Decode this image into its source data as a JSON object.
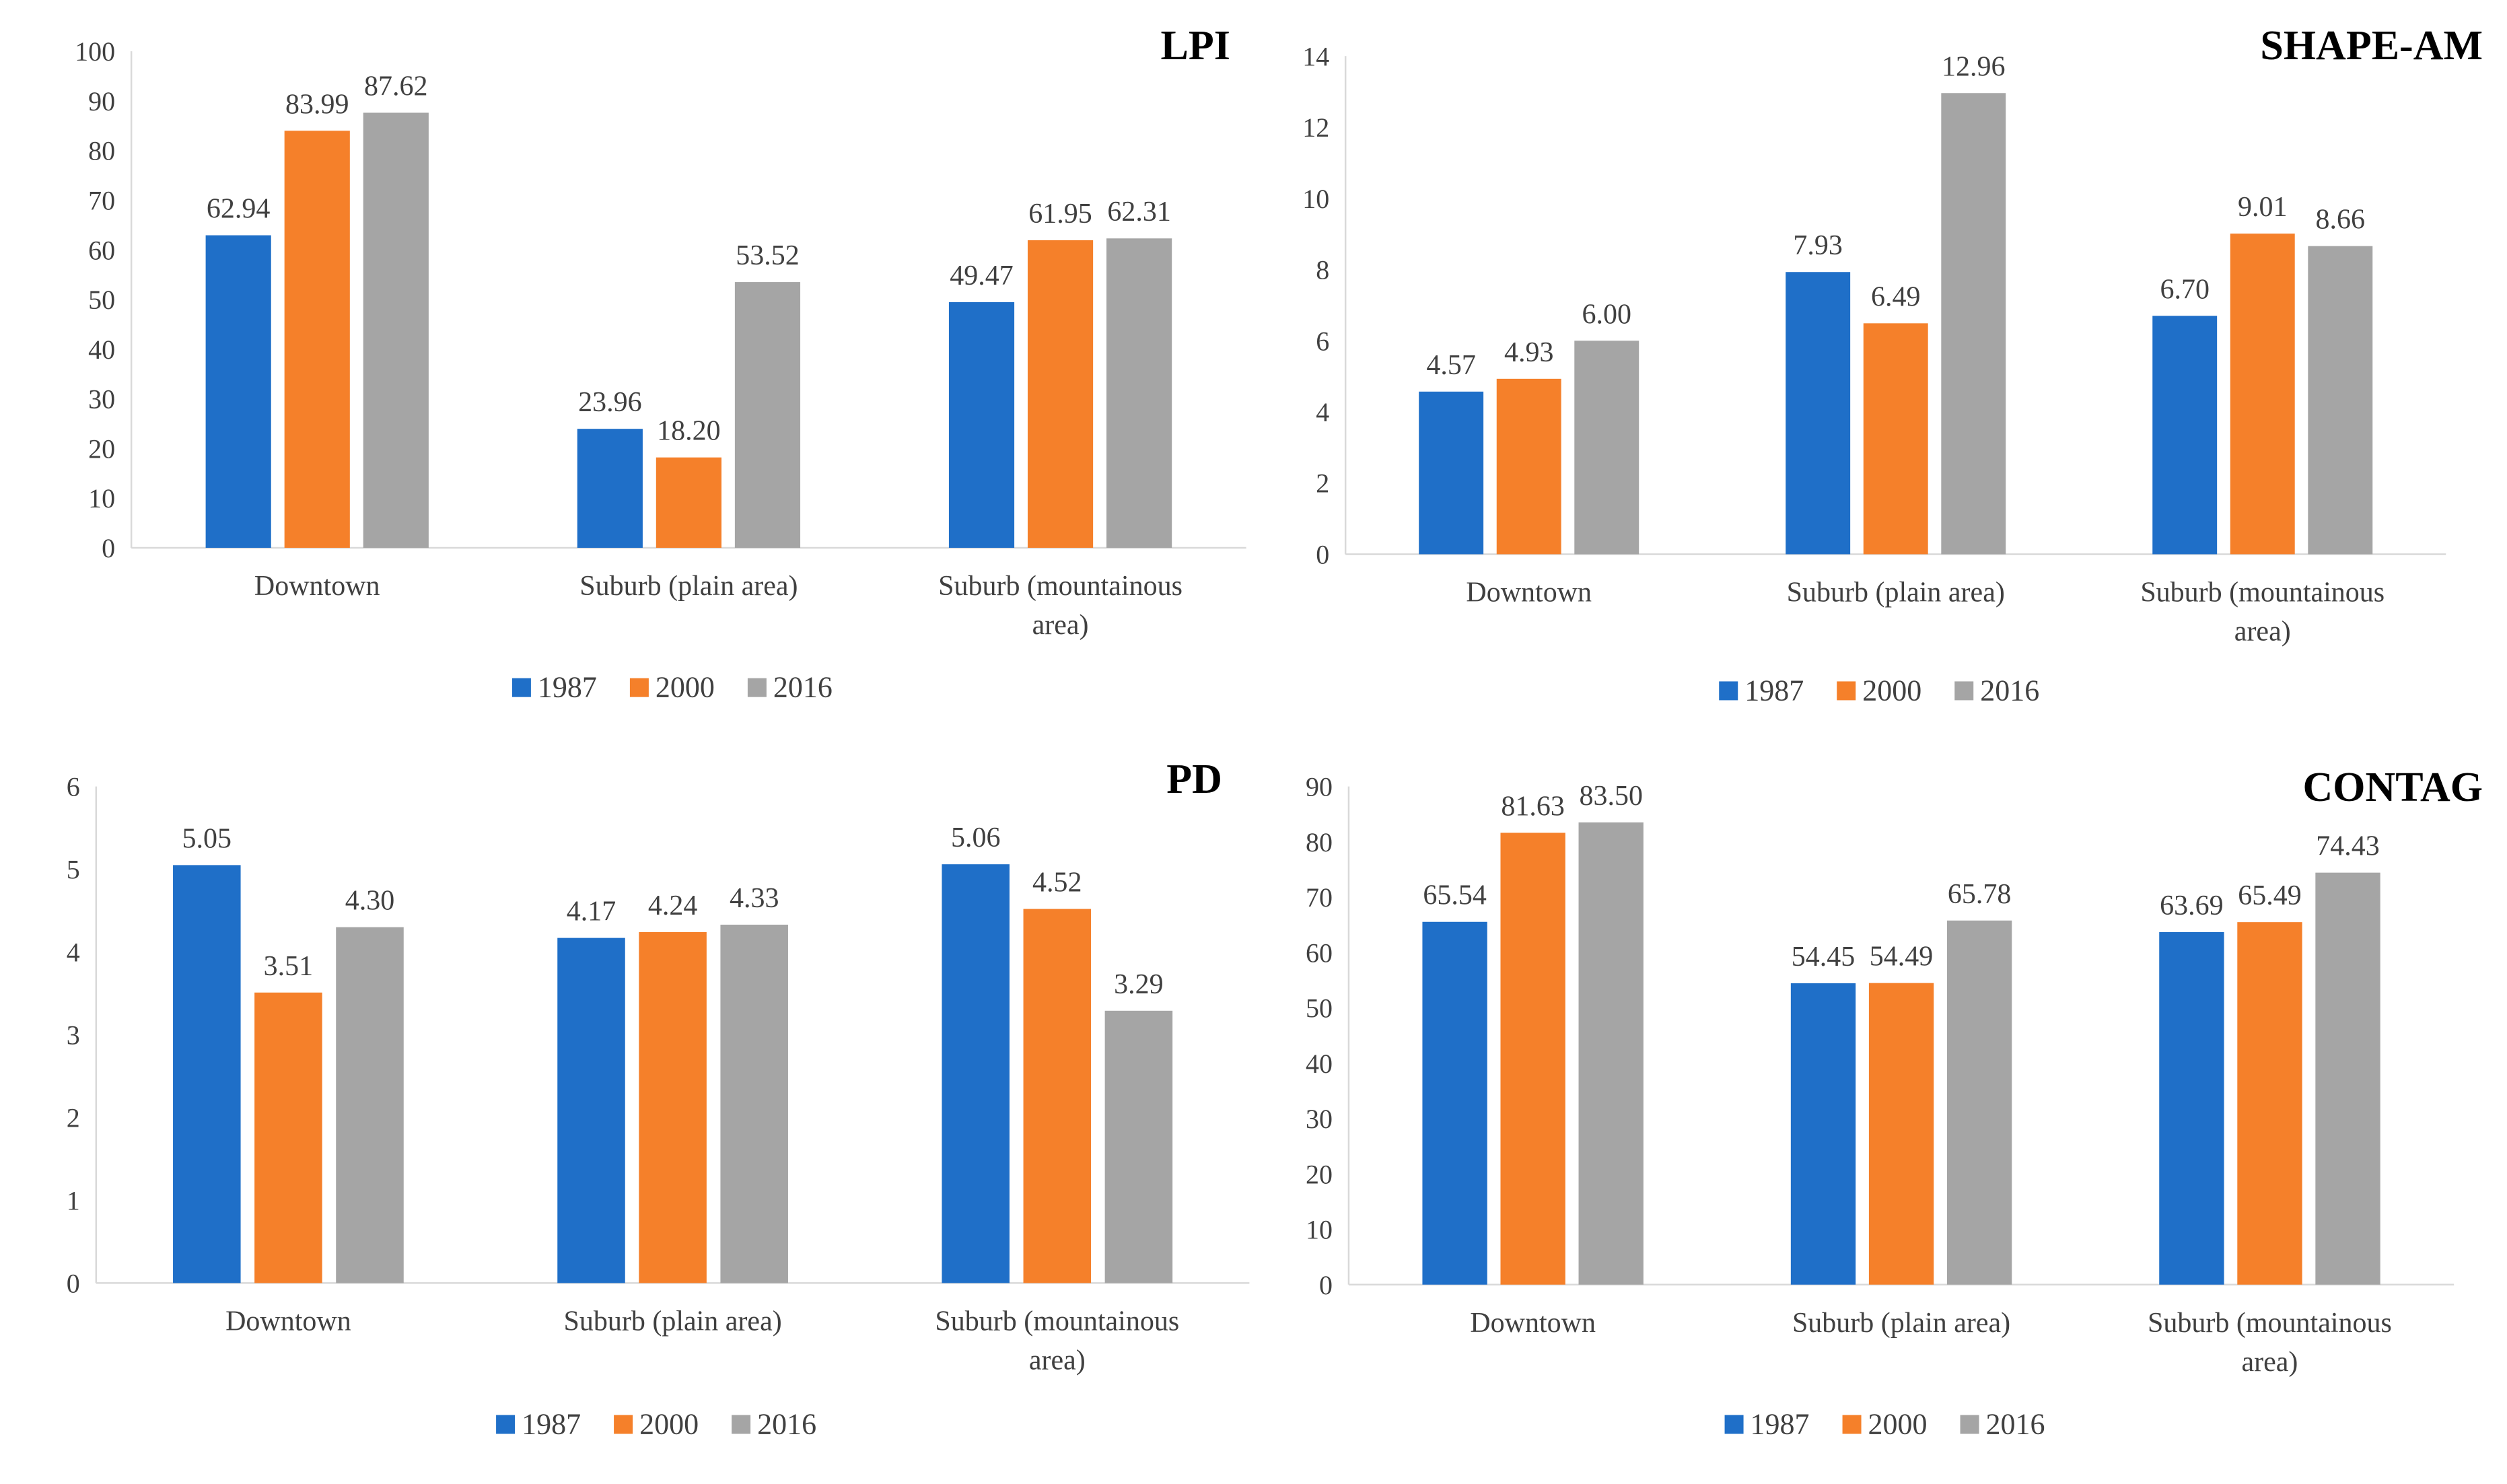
{
  "chart_data": [
    {
      "type": "bar",
      "title": "LPI",
      "categories": [
        "Downtown",
        "Suburb (plain area)",
        "Suburb (mountainous area)"
      ],
      "category_lines": [
        [
          "Downtown"
        ],
        [
          "Suburb (plain area)"
        ],
        [
          "Suburb (mountainous",
          "area)"
        ]
      ],
      "series": [
        {
          "name": "1987",
          "values": [
            62.94,
            23.96,
            49.47
          ],
          "labels": [
            "62.94",
            "23.96",
            "49.47"
          ]
        },
        {
          "name": "2000",
          "values": [
            83.99,
            18.2,
            61.95
          ],
          "labels": [
            "83.99",
            "18.20",
            "61.95"
          ]
        },
        {
          "name": "2016",
          "values": [
            87.62,
            53.52,
            62.31
          ],
          "labels": [
            "87.62",
            "53.52",
            "62.31"
          ]
        }
      ],
      "ylim": [
        0,
        100
      ],
      "yticks": [
        "0",
        "10",
        "20",
        "30",
        "40",
        "50",
        "60",
        "70",
        "80",
        "90",
        "100"
      ],
      "xlabel": "",
      "ylabel": "",
      "legend": "bottom"
    },
    {
      "type": "bar",
      "title": "SHAPE-AM",
      "categories": [
        "Downtown",
        "Suburb (plain area)",
        "Suburb (mountainous area)"
      ],
      "category_lines": [
        [
          "Downtown"
        ],
        [
          "Suburb (plain area)"
        ],
        [
          "Suburb (mountainous",
          "area)"
        ]
      ],
      "series": [
        {
          "name": "1987",
          "values": [
            4.57,
            7.93,
            6.7
          ],
          "labels": [
            "4.57",
            "7.93",
            "6.70"
          ]
        },
        {
          "name": "2000",
          "values": [
            4.93,
            6.49,
            9.01
          ],
          "labels": [
            "4.93",
            "6.49",
            "9.01"
          ]
        },
        {
          "name": "2016",
          "values": [
            6.0,
            12.96,
            8.66
          ],
          "labels": [
            "6.00",
            "12.96",
            "8.66"
          ]
        }
      ],
      "ylim": [
        0,
        14
      ],
      "yticks": [
        "0",
        "2",
        "4",
        "6",
        "8",
        "10",
        "12",
        "14"
      ],
      "xlabel": "",
      "ylabel": "",
      "legend": "bottom"
    },
    {
      "type": "bar",
      "title": "PD",
      "categories": [
        "Downtown",
        "Suburb (plain area)",
        "Suburb (mountainous area)"
      ],
      "category_lines": [
        [
          "Downtown"
        ],
        [
          "Suburb (plain area)"
        ],
        [
          "Suburb (mountainous",
          "area)"
        ]
      ],
      "series": [
        {
          "name": "1987",
          "values": [
            5.05,
            4.17,
            5.06
          ],
          "labels": [
            "5.05",
            "4.17",
            "5.06"
          ]
        },
        {
          "name": "2000",
          "values": [
            3.51,
            4.24,
            4.52
          ],
          "labels": [
            "3.51",
            "4.24",
            "4.52"
          ]
        },
        {
          "name": "2016",
          "values": [
            4.3,
            4.33,
            3.29
          ],
          "labels": [
            "4.30",
            "4.33",
            "3.29"
          ]
        }
      ],
      "ylim": [
        0,
        6
      ],
      "yticks": [
        "0",
        "1",
        "2",
        "3",
        "4",
        "5",
        "6"
      ],
      "xlabel": "",
      "ylabel": "",
      "legend": "bottom"
    },
    {
      "type": "bar",
      "title": "CONTAG",
      "categories": [
        "Downtown",
        "Suburb (plain area)",
        "Suburb (mountainous area)"
      ],
      "category_lines": [
        [
          "Downtown"
        ],
        [
          "Suburb (plain area)"
        ],
        [
          "Suburb (mountainous",
          "area)"
        ]
      ],
      "series": [
        {
          "name": "1987",
          "values": [
            65.54,
            54.45,
            63.69
          ],
          "labels": [
            "65.54",
            "54.45",
            "63.69"
          ]
        },
        {
          "name": "2000",
          "values": [
            81.63,
            54.49,
            65.49
          ],
          "labels": [
            "81.63",
            "54.49",
            "65.49"
          ]
        },
        {
          "name": "2016",
          "values": [
            83.5,
            65.78,
            74.43
          ],
          "labels": [
            "83.50",
            "65.78",
            "74.43"
          ]
        }
      ],
      "ylim": [
        0,
        90
      ],
      "yticks": [
        "0",
        "10",
        "20",
        "30",
        "40",
        "50",
        "60",
        "70",
        "80",
        "90"
      ],
      "xlabel": "",
      "ylabel": "",
      "legend": "bottom"
    }
  ],
  "colors": {
    "series": [
      "#1F6FC8",
      "#F5802A",
      "#A5A5A5"
    ],
    "axis": "#D9D9D9",
    "text": "#404040",
    "title": "#000000"
  }
}
